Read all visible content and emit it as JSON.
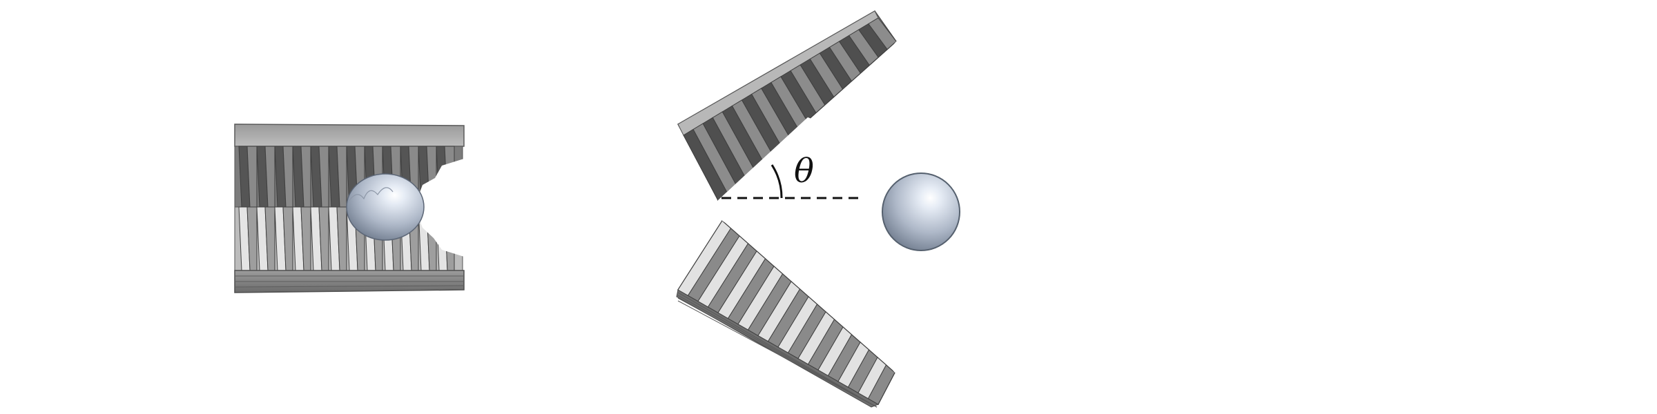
{
  "figure": {
    "angle_symbol": "θ",
    "colors": {
      "background": "#ffffff",
      "body_light": "#aaaaaa",
      "body_mid": "#8e8e8e",
      "body_dark": "#6a6a6a",
      "rib_dark": "#5c5c5c",
      "rib_light": "#d8d8d8",
      "edge": "#4a4a4a",
      "sphere_light": "#e8eef6",
      "sphere_mid": "#aeb8c8",
      "sphere_dark": "#6e7a8c",
      "line": "#111111"
    },
    "icons": [
      "closed-gripper",
      "open-gripper-upper-jaw",
      "open-gripper-lower-jaw",
      "sphere-object",
      "angle-arc"
    ]
  }
}
